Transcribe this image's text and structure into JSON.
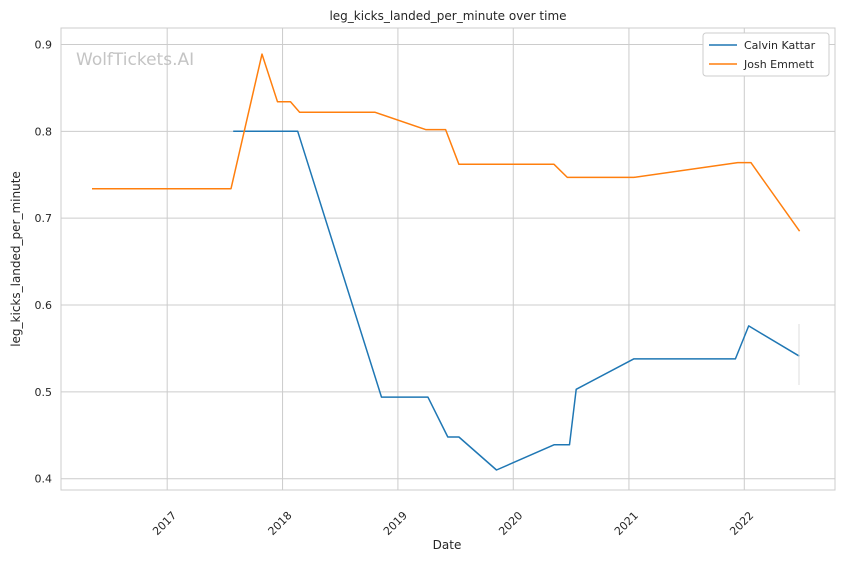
{
  "chart_data": {
    "type": "line",
    "title": "leg_kicks_landed_per_minute over time",
    "xlabel": "Date",
    "ylabel": "leg_kicks_landed_per_minute",
    "watermark": "WolfTickets.AI",
    "xlim": [
      "2016-01-31",
      "2022-10-15"
    ],
    "ylim": [
      0.387,
      0.919
    ],
    "x_ticks": [
      "2017",
      "2018",
      "2019",
      "2020",
      "2021",
      "2022"
    ],
    "y_ticks": [
      "0.4",
      "0.5",
      "0.6",
      "0.7",
      "0.8",
      "0.9"
    ],
    "grid": true,
    "legend_position": "top-right",
    "series": [
      {
        "name": "Calvin Kattar",
        "color": "#1f77b4",
        "points": [
          {
            "x": "2017-07-29",
            "y": 0.8
          },
          {
            "x": "2018-02-18",
            "y": 0.8
          },
          {
            "x": "2018-11-10",
            "y": 0.494
          },
          {
            "x": "2019-04-06",
            "y": 0.494
          },
          {
            "x": "2019-06-08",
            "y": 0.448
          },
          {
            "x": "2019-07-13",
            "y": 0.448
          },
          {
            "x": "2019-11-09",
            "y": 0.41
          },
          {
            "x": "2020-05-09",
            "y": 0.439
          },
          {
            "x": "2020-06-27",
            "y": 0.439
          },
          {
            "x": "2020-07-18",
            "y": 0.503
          },
          {
            "x": "2021-01-16",
            "y": 0.538
          },
          {
            "x": "2021-12-04",
            "y": 0.538
          },
          {
            "x": "2022-01-15",
            "y": 0.576
          },
          {
            "x": "2022-06-25",
            "y": 0.541
          }
        ]
      },
      {
        "name": "Josh Emmett",
        "color": "#ff7f0e",
        "points": [
          {
            "x": "2016-05-08",
            "y": 0.734
          },
          {
            "x": "2017-07-22",
            "y": 0.734
          },
          {
            "x": "2017-10-28",
            "y": 0.889
          },
          {
            "x": "2017-12-16",
            "y": 0.834
          },
          {
            "x": "2018-01-26",
            "y": 0.834
          },
          {
            "x": "2018-02-24",
            "y": 0.822
          },
          {
            "x": "2018-10-20",
            "y": 0.822
          },
          {
            "x": "2019-03-30",
            "y": 0.802
          },
          {
            "x": "2019-06-01",
            "y": 0.802
          },
          {
            "x": "2019-07-13",
            "y": 0.762
          },
          {
            "x": "2020-05-09",
            "y": 0.762
          },
          {
            "x": "2020-06-20",
            "y": 0.747
          },
          {
            "x": "2021-01-16",
            "y": 0.747
          },
          {
            "x": "2021-12-11",
            "y": 0.764
          },
          {
            "x": "2022-01-22",
            "y": 0.764
          },
          {
            "x": "2022-06-25",
            "y": 0.685
          }
        ]
      }
    ]
  }
}
